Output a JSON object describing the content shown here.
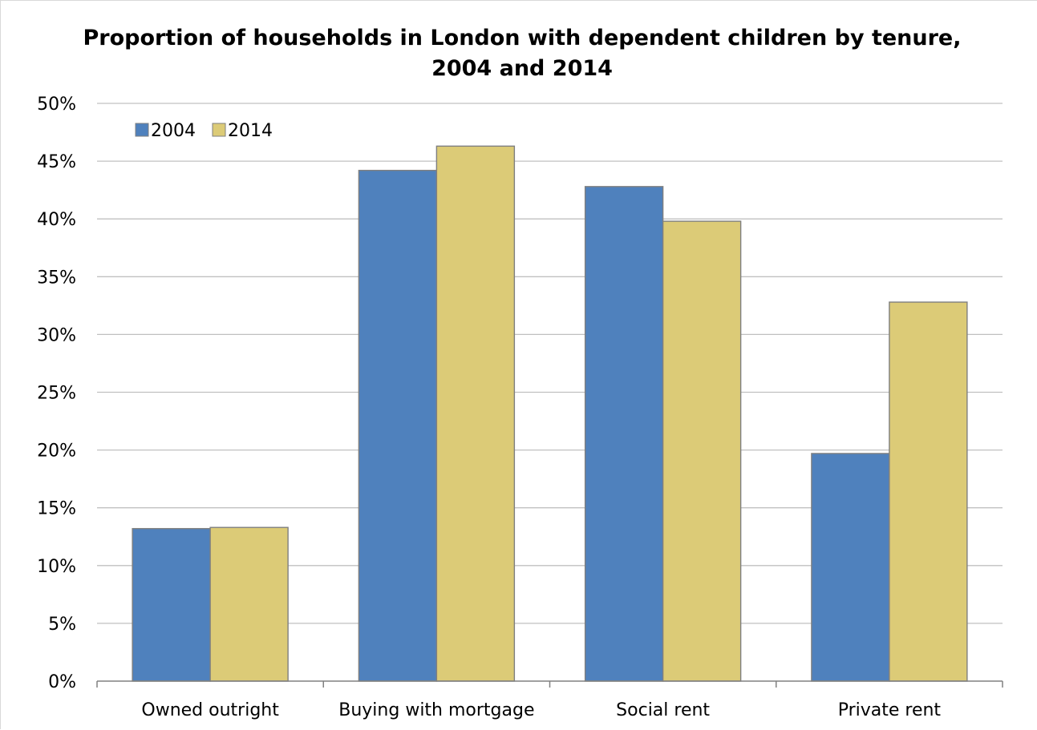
{
  "chart_data": {
    "type": "bar",
    "title": "Proportion of households in London with dependent children by tenure,",
    "subtitle": "2004 and 2014",
    "xlabel": "",
    "ylabel": "",
    "categories": [
      "Owned outright",
      "Buying with mortgage",
      "Social rent",
      "Private rent"
    ],
    "series": [
      {
        "name": "2004",
        "color": "#4f81bd",
        "values": [
          0.132,
          0.442,
          0.428,
          0.197
        ]
      },
      {
        "name": "2014",
        "color": "#dccb77",
        "values": [
          0.133,
          0.463,
          0.398,
          0.328
        ]
      }
    ],
    "ylim": [
      0,
      0.5
    ],
    "yticks": [
      0,
      0.05,
      0.1,
      0.15,
      0.2,
      0.25,
      0.3,
      0.35,
      0.4,
      0.45,
      0.5
    ],
    "ytick_labels": [
      "0%",
      "5%",
      "10%",
      "15%",
      "20%",
      "25%",
      "30%",
      "35%",
      "40%",
      "45%",
      "50%"
    ],
    "grid": true,
    "legend_position": "top-left"
  }
}
